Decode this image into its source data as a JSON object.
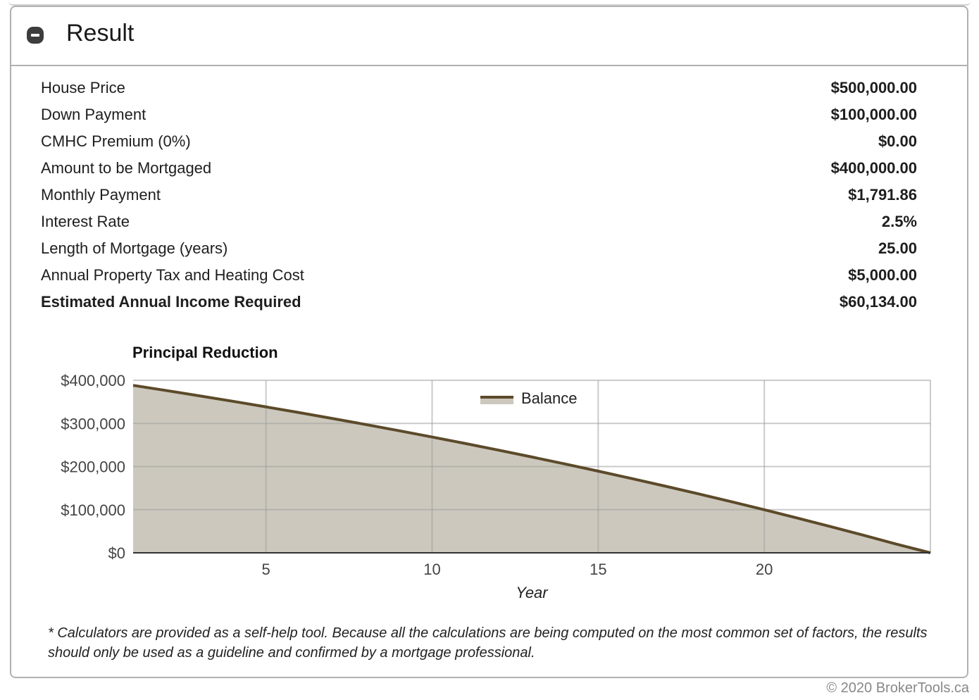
{
  "panel": {
    "title": "Result",
    "collapse_icon": "minus-circle-icon"
  },
  "results": [
    {
      "label": "House Price",
      "value": "$500,000.00"
    },
    {
      "label": "Down Payment",
      "value": "$100,000.00"
    },
    {
      "label": "CMHC Premium (0%)",
      "value": "$0.00"
    },
    {
      "label": "Amount to be Mortgaged",
      "value": "$400,000.00"
    },
    {
      "label": "Monthly Payment",
      "value": "$1,791.86"
    },
    {
      "label": "Interest Rate",
      "value": "2.5%"
    },
    {
      "label": "Length of Mortgage (years)",
      "value": "25.00"
    },
    {
      "label": "Annual Property Tax and Heating Cost",
      "value": "$5,000.00"
    },
    {
      "label": "Estimated Annual Income Required",
      "value": "$60,134.00"
    }
  ],
  "chart_data": {
    "type": "area",
    "title": "Principal Reduction",
    "xlabel": "Year",
    "ylabel": "",
    "x": [
      1,
      2,
      3,
      4,
      5,
      6,
      7,
      8,
      9,
      10,
      11,
      12,
      13,
      14,
      15,
      16,
      17,
      18,
      19,
      20,
      21,
      22,
      23,
      24,
      25
    ],
    "series": [
      {
        "name": "Balance",
        "color": "#5c4a2a",
        "fill": "#ccc8bd",
        "values": [
          388270,
          376250,
          363920,
          351290,
          338330,
          325050,
          311430,
          297470,
          283160,
          268490,
          253440,
          238020,
          222210,
          206000,
          189380,
          172350,
          154880,
          136980,
          118630,
          99820,
          80530,
          60760,
          40490,
          19710,
          0
        ]
      }
    ],
    "xlim": [
      1,
      25
    ],
    "ylim": [
      0,
      400000
    ],
    "x_ticks": [
      5,
      10,
      15,
      20
    ],
    "y_ticks": [
      "$0",
      "$100,000",
      "$200,000",
      "$300,000",
      "$400,000"
    ],
    "y_tick_values": [
      0,
      100000,
      200000,
      300000,
      400000
    ],
    "grid": true,
    "legend_position": "top-inside"
  },
  "disclaimer": "* Calculators are provided as a self-help tool. Because all the calculations are being computed on the most common set of factors, the results should only be used as a guideline and confirmed by a mortgage professional.",
  "copyright": "© 2020 BrokerTools.ca"
}
